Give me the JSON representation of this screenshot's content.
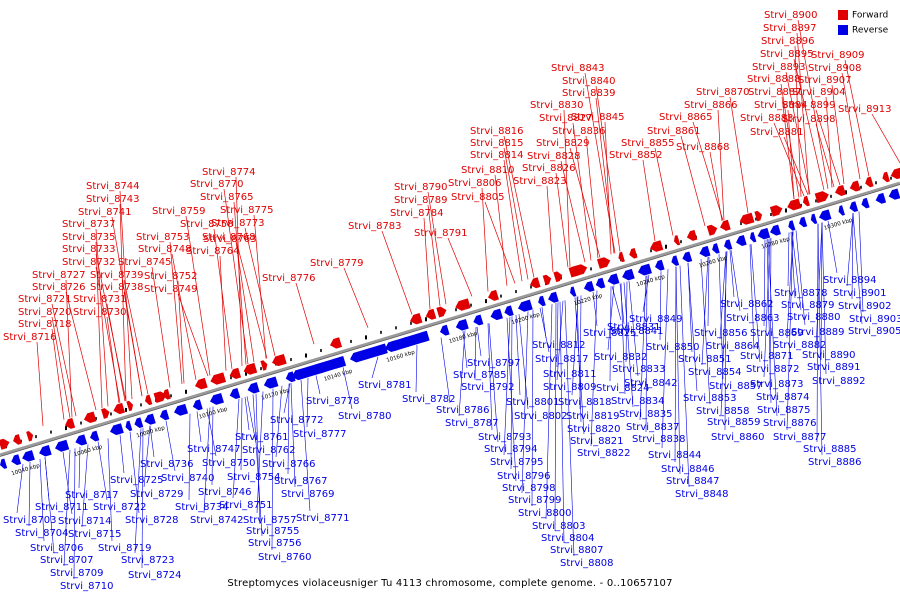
{
  "caption": "Streptomyces violaceusniger Tu 4113 chromosome, complete genome. - 0..10657107",
  "legend": {
    "forward": "Forward",
    "reverse": "Reverse"
  },
  "colors": {
    "forward": "#e00000",
    "reverse": "#0000e6",
    "axis": "#808080"
  },
  "axis_labels": [
    "10040 kbp",
    "10060 kbp",
    "10080 kbp",
    "10100 kbp",
    "10120 kbp",
    "10140 kbp",
    "10160 kbp",
    "10180 kbp",
    "10200 kbp",
    "10220 kbp",
    "10240 kbp",
    "10260 kbp",
    "10280 kbp",
    "10300 kbp"
  ],
  "forward_labels": [
    "Strvi_8716",
    "Strvi_8718",
    "Strvi_8720",
    "Strvi_8721",
    "Strvi_8726",
    "Strvi_8727",
    "Strvi_8730",
    "Strvi_8731",
    "Strvi_8732",
    "Strvi_8733",
    "Strvi_8735",
    "Strvi_8737",
    "Strvi_8738",
    "Strvi_8739",
    "Strvi_8741",
    "Strvi_8743",
    "Strvi_8744",
    "Strvi_8745",
    "Strvi_8748",
    "Strvi_8749",
    "Strvi_8752",
    "Strvi_8753",
    "Strvi_8758",
    "Strvi_8759",
    "Strvi_8763",
    "Strvi_8764",
    "Strvi_8765",
    "Strvi_8768",
    "Strvi_8770",
    "Strvi_8773",
    "Strvi_8774",
    "Strvi_8775",
    "Strvi_8776",
    "Strvi_8779",
    "Strvi_8783",
    "Strvi_8784",
    "Strvi_8789",
    "Strvi_8790",
    "Strvi_8791",
    "Strvi_8805",
    "Strvi_8806",
    "Strvi_8810",
    "Strvi_8814",
    "Strvi_8815",
    "Strvi_8816",
    "Strvi_8823",
    "Strvi_8826",
    "Strvi_8827",
    "Strvi_8828",
    "Strvi_8829",
    "Strvi_8830",
    "Strvi_8836",
    "Strvi_8839",
    "Strvi_8840",
    "Strvi_8843",
    "Strvi_8845",
    "Strvi_8852",
    "Strvi_8855",
    "Strvi_8861",
    "Strvi_8865",
    "Strvi_8866",
    "Strvi_8868",
    "Strvi_8870",
    "Strvi_8881",
    "Strvi_8883",
    "Strvi_8884",
    "Strvi_8887",
    "Strvi_8888",
    "Strvi_8893",
    "Strvi_8895",
    "Strvi_8896",
    "Strvi_8897",
    "Strvi_8898",
    "Strvi_8899",
    "Strvi_8900",
    "Strvi_8904",
    "Strvi_8907",
    "Strvi_8908",
    "Strvi_8909",
    "Strvi_8913"
  ],
  "reverse_labels": [
    "Strvi_8703",
    "Strvi_8704",
    "Strvi_8706",
    "Strvi_8707",
    "Strvi_8709",
    "Strvi_8710",
    "Strvi_8711",
    "Strvi_8714",
    "Strvi_8715",
    "Strvi_8717",
    "Strvi_8719",
    "Strvi_8722",
    "Strvi_8723",
    "Strvi_8724",
    "Strvi_8725",
    "Strvi_8728",
    "Strvi_8729",
    "Strvi_8734",
    "Strvi_8736",
    "Strvi_8740",
    "Strvi_8742",
    "Strvi_8746",
    "Strvi_8747",
    "Strvi_8750",
    "Strvi_8751",
    "Strvi_8754",
    "Strvi_8755",
    "Strvi_8756",
    "Strvi_8757",
    "Strvi_8760",
    "Strvi_8761",
    "Strvi_8762",
    "Strvi_8766",
    "Strvi_8767",
    "Strvi_8769",
    "Strvi_8771",
    "Strvi_8772",
    "Strvi_8777",
    "Strvi_8778",
    "Strvi_8780",
    "Strvi_8781",
    "Strvi_8782",
    "Strvi_8785",
    "Strvi_8786",
    "Strvi_8787",
    "Strvi_8792",
    "Strvi_8793",
    "Strvi_8794",
    "Strvi_8795",
    "Strvi_8796",
    "Strvi_8797",
    "Strvi_8798",
    "Strvi_8799",
    "Strvi_8800",
    "Strvi_8801",
    "Strvi_8802",
    "Strvi_8803",
    "Strvi_8804",
    "Strvi_8807",
    "Strvi_8808",
    "Strvi_8809",
    "Strvi_8811",
    "Strvi_8812",
    "Strvi_8817",
    "Strvi_8818",
    "Strvi_8819",
    "Strvi_8820",
    "Strvi_8821",
    "Strvi_8822",
    "Strvi_8824",
    "Strvi_8825",
    "Strvi_8831",
    "Strvi_8832",
    "Strvi_8833",
    "Strvi_8834",
    "Strvi_8835",
    "Strvi_8837",
    "Strvi_8838",
    "Strvi_8841",
    "Strvi_8842",
    "Strvi_8844",
    "Strvi_8846",
    "Strvi_8847",
    "Strvi_8848",
    "Strvi_8849",
    "Strvi_8850",
    "Strvi_8851",
    "Strvi_8853",
    "Strvi_8854",
    "Strvi_8856",
    "Strvi_8857",
    "Strvi_8858",
    "Strvi_8859",
    "Strvi_8860",
    "Strvi_8862",
    "Strvi_8863",
    "Strvi_8864",
    "Strvi_8869",
    "Strvi_8871",
    "Strvi_8872",
    "Strvi_8873",
    "Strvi_8874",
    "Strvi_8875",
    "Strvi_8876",
    "Strvi_8877",
    "Strvi_8878",
    "Strvi_8879",
    "Strvi_8880",
    "Strvi_8882",
    "Strvi_8885",
    "Strvi_8886",
    "Strvi_8889",
    "Strvi_8890",
    "Strvi_8891",
    "Strvi_8892",
    "Strvi_8894",
    "Strvi_8901",
    "Strvi_8902",
    "Strvi_8903",
    "Strvi_8905"
  ]
}
